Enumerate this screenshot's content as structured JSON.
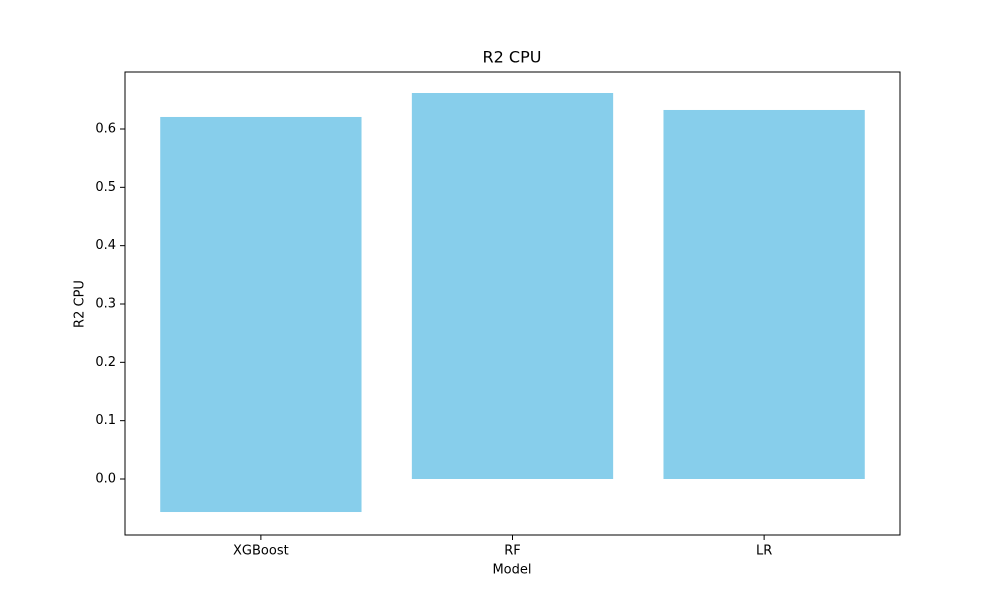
{
  "chart_data": {
    "type": "bar",
    "title": "R2 CPU",
    "x_label": "Model",
    "y_label": "R2 CPU",
    "categories": [
      "XGBoost",
      "RF",
      "LR"
    ],
    "series": [
      {
        "color": "#87ceeb",
        "values": [
          0.6206,
          0.6617,
          0.6326
        ]
      },
      {
        "color": "#87ceeb",
        "values": [
          -0.0566,
          null,
          null
        ]
      }
    ],
    "ylim": [
      -0.096,
      0.6977
    ],
    "yticks": [
      0.0,
      0.1,
      0.2,
      0.3,
      0.4,
      0.5,
      0.6
    ],
    "grid": false
  }
}
